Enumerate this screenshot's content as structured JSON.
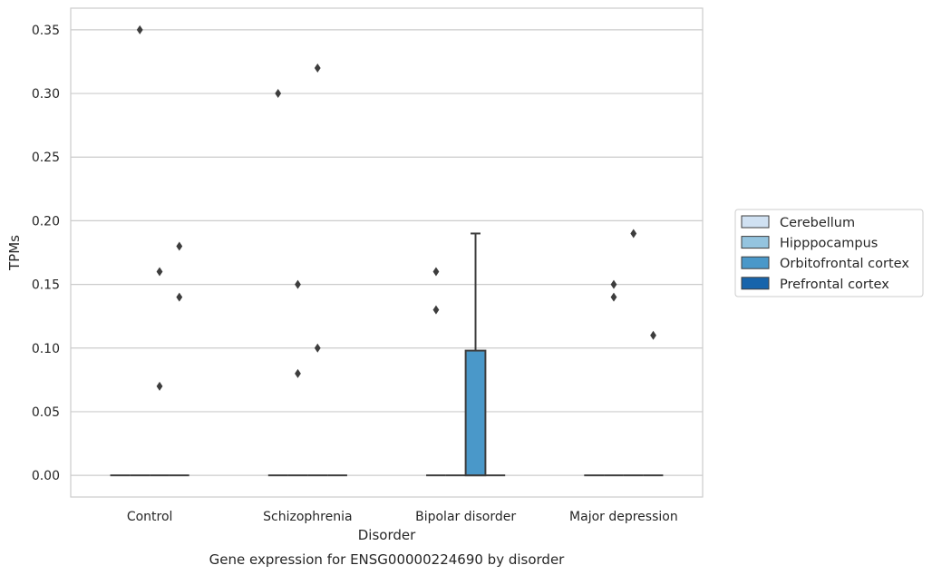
{
  "chart_data": {
    "type": "box",
    "title": "Gene expression for ENSG00000224690 by disorder",
    "xlabel": "Disorder",
    "ylabel": "TPMs",
    "ylim": [
      -0.017,
      0.367
    ],
    "yticks": [
      0.0,
      0.05,
      0.1,
      0.15,
      0.2,
      0.25,
      0.3,
      0.35
    ],
    "ytick_labels": [
      "0.00",
      "0.05",
      "0.10",
      "0.15",
      "0.20",
      "0.25",
      "0.30",
      "0.35"
    ],
    "grid": "horizontal",
    "legend_position": "right",
    "categories": [
      "Control",
      "Schizophrenia",
      "Bipolar disorder",
      "Major depression"
    ],
    "series": [
      {
        "name": "Cerebellum",
        "color": "#d0e1f2"
      },
      {
        "name": "Hipppocampus",
        "color": "#94c4df"
      },
      {
        "name": "Orbitofrontal cortex",
        "color": "#4a98c9"
      },
      {
        "name": "Prefrontal cortex",
        "color": "#1764ab"
      }
    ],
    "boxes": [
      {
        "category": 0,
        "series": 0,
        "q1": 0,
        "median": 0,
        "q3": 0,
        "whislo": 0,
        "whishi": 0,
        "fliers": []
      },
      {
        "category": 0,
        "series": 1,
        "q1": 0,
        "median": 0,
        "q3": 0,
        "whislo": 0,
        "whishi": 0,
        "fliers": [
          0.35
        ]
      },
      {
        "category": 0,
        "series": 2,
        "q1": 0,
        "median": 0,
        "q3": 0,
        "whislo": 0,
        "whishi": 0,
        "fliers": [
          0.16,
          0.07
        ]
      },
      {
        "category": 0,
        "series": 3,
        "q1": 0,
        "median": 0,
        "q3": 0,
        "whislo": 0,
        "whishi": 0,
        "fliers": [
          0.18,
          0.14
        ]
      },
      {
        "category": 1,
        "series": 0,
        "q1": 0,
        "median": 0,
        "q3": 0,
        "whislo": 0,
        "whishi": 0,
        "fliers": [
          0.3
        ]
      },
      {
        "category": 1,
        "series": 1,
        "q1": 0,
        "median": 0,
        "q3": 0,
        "whislo": 0,
        "whishi": 0,
        "fliers": [
          0.15,
          0.08
        ]
      },
      {
        "category": 1,
        "series": 2,
        "q1": 0,
        "median": 0,
        "q3": 0,
        "whislo": 0,
        "whishi": 0,
        "fliers": [
          0.32,
          0.1
        ]
      },
      {
        "category": 1,
        "series": 3,
        "q1": 0,
        "median": 0,
        "q3": 0,
        "whislo": 0,
        "whishi": 0,
        "fliers": []
      },
      {
        "category": 2,
        "series": 0,
        "q1": 0,
        "median": 0,
        "q3": 0,
        "whislo": 0,
        "whishi": 0,
        "fliers": [
          0.16,
          0.13
        ]
      },
      {
        "category": 2,
        "series": 1,
        "q1": 0,
        "median": 0,
        "q3": 0,
        "whislo": 0,
        "whishi": 0,
        "fliers": []
      },
      {
        "category": 2,
        "series": 2,
        "q1": 0,
        "median": 0,
        "q3": 0.098,
        "whislo": 0,
        "whishi": 0.19,
        "fliers": []
      },
      {
        "category": 2,
        "series": 3,
        "q1": 0,
        "median": 0,
        "q3": 0,
        "whislo": 0,
        "whishi": 0,
        "fliers": []
      },
      {
        "category": 3,
        "series": 0,
        "q1": 0,
        "median": 0,
        "q3": 0,
        "whislo": 0,
        "whishi": 0,
        "fliers": []
      },
      {
        "category": 3,
        "series": 1,
        "q1": 0,
        "median": 0,
        "q3": 0,
        "whislo": 0,
        "whishi": 0,
        "fliers": [
          0.15,
          0.14
        ]
      },
      {
        "category": 3,
        "series": 2,
        "q1": 0,
        "median": 0,
        "q3": 0,
        "whislo": 0,
        "whishi": 0,
        "fliers": [
          0.19
        ]
      },
      {
        "category": 3,
        "series": 3,
        "q1": 0,
        "median": 0,
        "q3": 0,
        "whislo": 0,
        "whishi": 0,
        "fliers": [
          0.11
        ]
      }
    ]
  }
}
